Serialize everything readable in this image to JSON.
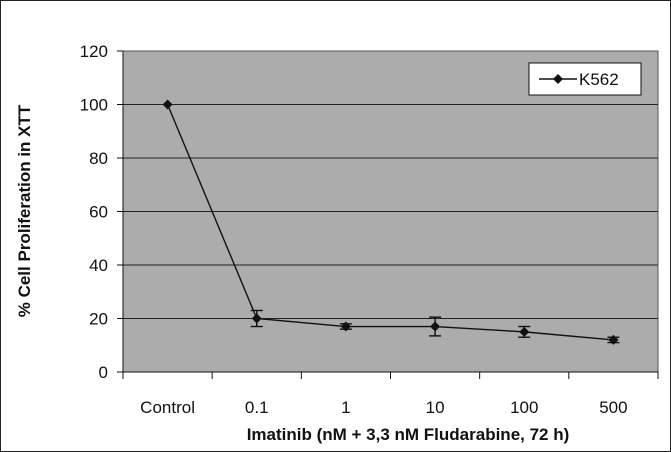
{
  "chart_data": {
    "type": "line",
    "categories": [
      "Control",
      "0.1",
      "1",
      "10",
      "100",
      "500"
    ],
    "series": [
      {
        "name": "K562",
        "values": [
          100,
          20,
          17,
          17,
          15,
          12
        ],
        "errors": [
          0,
          3,
          1,
          3.5,
          2,
          1
        ]
      }
    ],
    "xlabel": "Imatinib (nM + 3,3 nM Fludarabine, 72 h)",
    "ylabel": "% Cell Proliferation in XTT",
    "ylim": [
      0,
      120
    ],
    "yticks": [
      0,
      20,
      40,
      60,
      80,
      100,
      120
    ],
    "grid": true,
    "legend_position": "top-right",
    "colors": {
      "plot_background": "#acacac",
      "line": "#111111",
      "marker": "#111111",
      "grid": "#222222",
      "frame": "#333333"
    }
  }
}
